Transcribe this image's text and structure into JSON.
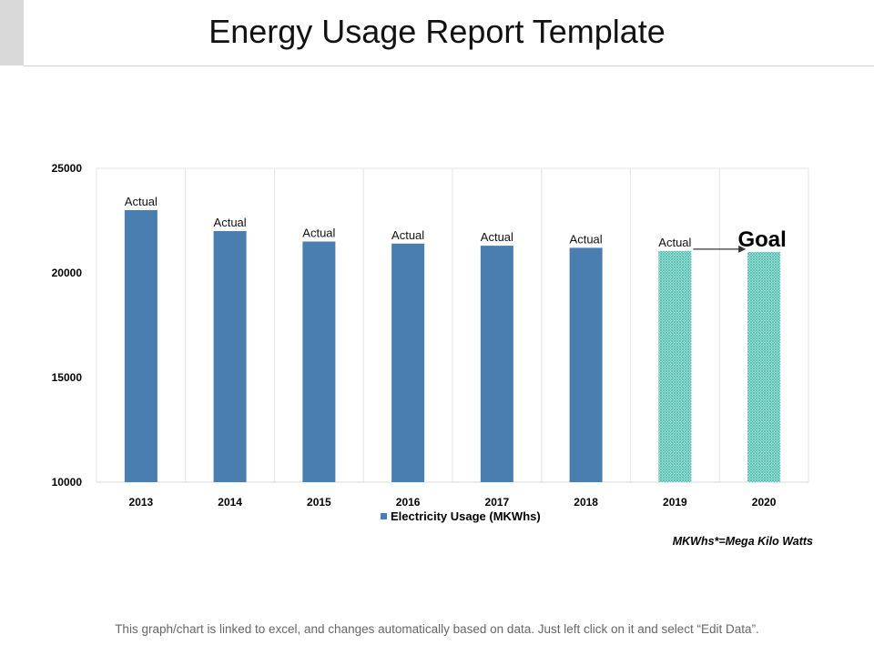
{
  "page": {
    "title": "Energy Usage Report Template",
    "footnote": "This graph/chart is linked to excel, and changes automatically based on data.  Just left click on it and select “Edit Data”."
  },
  "chart_data": {
    "type": "bar",
    "categories": [
      "2013",
      "2014",
      "2015",
      "2016",
      "2017",
      "2018",
      "2019",
      "2020"
    ],
    "series": [
      {
        "name": "Electricity Usage (MKWhs)",
        "values": [
          23000,
          22000,
          21500,
          21400,
          21300,
          21200,
          21050,
          21000
        ]
      }
    ],
    "bar_labels": [
      "Actual",
      "Actual",
      "Actual",
      "Actual",
      "Actual",
      "Actual",
      "Actual",
      ""
    ],
    "patterned_categories": [
      "2019",
      "2020"
    ],
    "goal_label": "Goal",
    "ylim": [
      10000,
      25000
    ],
    "yticks": [
      10000,
      15000,
      20000,
      25000
    ],
    "ytick_labels": [
      "10000",
      "15000",
      "20000",
      "25000"
    ],
    "legend_position": "bottom",
    "note": "MKWhs*=Mega Kilo Watts",
    "colors": {
      "solid": "#4a7eb0",
      "pattern": "#4fbdb0",
      "grid": "#e6e6e6"
    }
  }
}
